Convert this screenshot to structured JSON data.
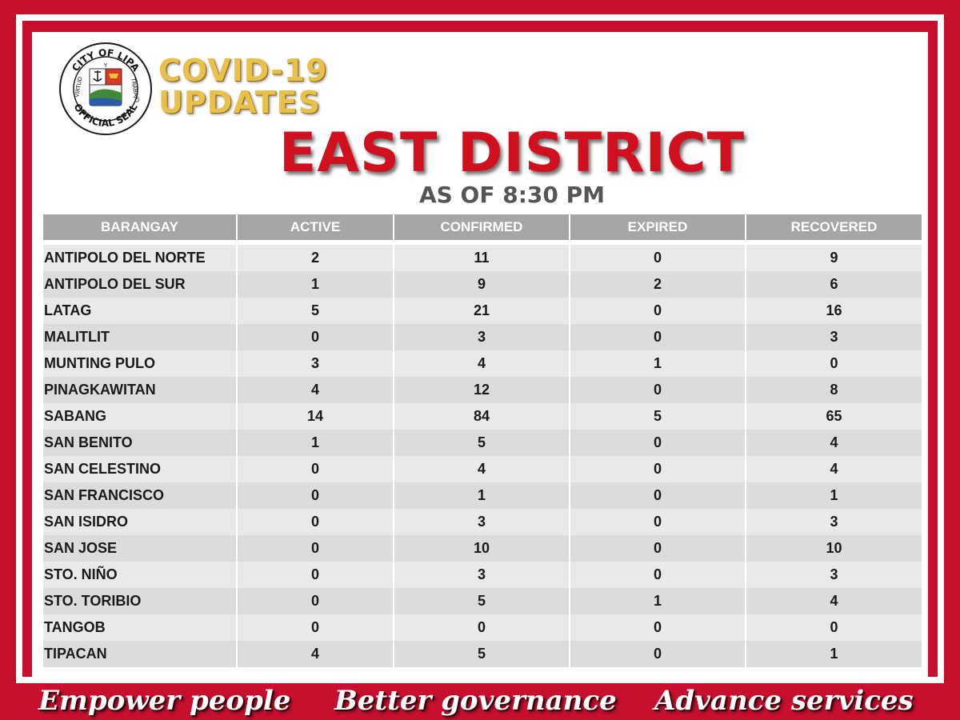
{
  "header": {
    "seal_top_text": "CITY OF LIPA",
    "seal_bottom_text": "OFFICIAL SEAL",
    "seal_left_text": "VIRTUD",
    "seal_right_text": "TRABAJO",
    "seal_center_letter": "Y",
    "covid_line1": "COVID-19",
    "covid_line2": "UPDATES",
    "district_title": "EAST DISTRICT",
    "as_of": "AS OF 8:30 PM"
  },
  "colors": {
    "brand_red": "#c8102e",
    "title_red": "#d0101e",
    "gold": "#e8c04a",
    "header_gray": "#a6a6a6"
  },
  "table": {
    "columns": [
      "BARANGAY",
      "ACTIVE",
      "CONFIRMED",
      "EXPIRED",
      "RECOVERED"
    ],
    "rows": [
      [
        "ANTIPOLO DEL NORTE",
        "2",
        "11",
        "0",
        "9"
      ],
      [
        "ANTIPOLO DEL SUR",
        "1",
        "9",
        "2",
        "6"
      ],
      [
        "LATAG",
        "5",
        "21",
        "0",
        "16"
      ],
      [
        "MALITLIT",
        "0",
        "3",
        "0",
        "3"
      ],
      [
        "MUNTING PULO",
        "3",
        "4",
        "1",
        "0"
      ],
      [
        "PINAGKAWITAN",
        "4",
        "12",
        "0",
        "8"
      ],
      [
        "SABANG",
        "14",
        "84",
        "5",
        "65"
      ],
      [
        "SAN BENITO",
        "1",
        "5",
        "0",
        "4"
      ],
      [
        "SAN CELESTINO",
        "0",
        "4",
        "0",
        "4"
      ],
      [
        "SAN FRANCISCO",
        "0",
        "1",
        "0",
        "1"
      ],
      [
        "SAN ISIDRO",
        "0",
        "3",
        "0",
        "3"
      ],
      [
        "SAN JOSE",
        "0",
        "10",
        "0",
        "10"
      ],
      [
        "STO. NIÑO",
        "0",
        "3",
        "0",
        "3"
      ],
      [
        "STO. TORIBIO",
        "0",
        "5",
        "1",
        "4"
      ],
      [
        "TANGOB",
        "0",
        "0",
        "0",
        "0"
      ],
      [
        "TIPACAN",
        "4",
        "5",
        "0",
        "1"
      ]
    ]
  },
  "footer": {
    "slogan1": "Empower people",
    "slogan2": "Better governance",
    "slogan3": "Advance services"
  }
}
